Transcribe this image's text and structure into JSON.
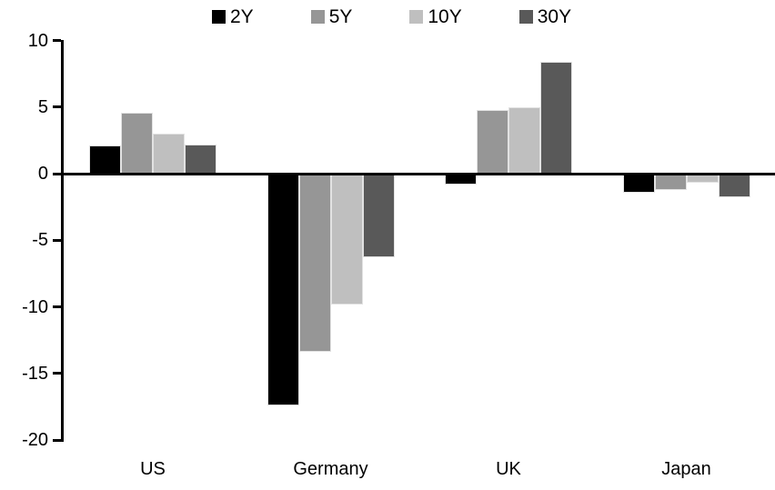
{
  "chart_data": {
    "type": "bar",
    "title": "",
    "categories": [
      "US",
      "Germany",
      "UK",
      "Japan"
    ],
    "series": [
      {
        "name": "2Y",
        "color": "#000000",
        "values": [
          2.1,
          -17.4,
          -0.8,
          -1.4
        ]
      },
      {
        "name": "5Y",
        "color": "#969696",
        "values": [
          4.6,
          -13.4,
          4.8,
          -1.2
        ]
      },
      {
        "name": "10Y",
        "color": "#BFBFBF",
        "values": [
          3.0,
          -9.8,
          5.0,
          -0.7
        ]
      },
      {
        "name": "30Y",
        "color": "#595959",
        "values": [
          2.2,
          -6.3,
          8.4,
          -1.8
        ]
      }
    ],
    "ylim": [
      -20,
      10
    ],
    "yticks": [
      10,
      5,
      0,
      -5,
      -10,
      -15,
      -20
    ],
    "xlabel": "",
    "ylabel": "",
    "grid": false,
    "legend_position": "top",
    "axis_color": "#000000",
    "background_color": "#ffffff"
  }
}
